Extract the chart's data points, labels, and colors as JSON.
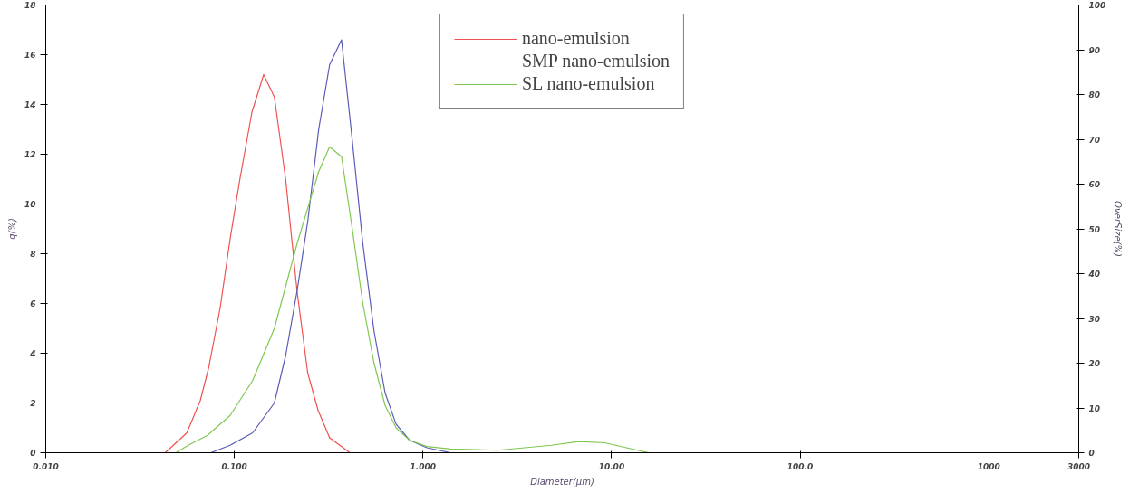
{
  "chart_data": {
    "type": "line",
    "xlabel": "Diameter(µm)",
    "ylabel": "q(%)",
    "y2label": "OverSize(%)",
    "log": "x",
    "xlim": [
      0.01,
      3000
    ],
    "xticks": [
      {
        "value": 0.01,
        "label": "0.010"
      },
      {
        "value": 0.1,
        "label": "0.100"
      },
      {
        "value": 1,
        "label": "1.000"
      },
      {
        "value": 10,
        "label": "10.00"
      },
      {
        "value": 100,
        "label": "100.0"
      },
      1000,
      3000
    ],
    "ylim": [
      0,
      18
    ],
    "yticks": [
      0,
      2,
      4,
      6,
      8,
      10,
      12,
      14,
      16,
      18
    ],
    "y2lim": [
      0,
      100
    ],
    "y2ticks": [
      0,
      10,
      20,
      30,
      40,
      50,
      60,
      70,
      80,
      90,
      100
    ],
    "grid": false,
    "legend": "top",
    "marker": "none",
    "line_style": "solid",
    "series": [
      {
        "name": "nano-emulsion",
        "color": "#f05050",
        "x": [
          0.043,
          0.056,
          0.066,
          0.073,
          0.084,
          0.095,
          0.107,
          0.124,
          0.143,
          0.163,
          0.187,
          0.215,
          0.245,
          0.278,
          0.32,
          0.41
        ],
        "values": [
          0,
          0.8,
          2.1,
          3.4,
          5.8,
          8.6,
          11,
          13.7,
          15.2,
          14.3,
          11,
          6.5,
          3.2,
          1.7,
          0.6,
          0
        ]
      },
      {
        "name": "SMP nano-emulsion",
        "color": "#5a5ab8",
        "x": [
          0.075,
          0.095,
          0.125,
          0.163,
          0.187,
          0.215,
          0.245,
          0.28,
          0.32,
          0.37,
          0.42,
          0.48,
          0.55,
          0.63,
          0.72,
          0.85,
          1.05,
          1.4
        ],
        "values": [
          0,
          0.3,
          0.8,
          2,
          3.9,
          6.5,
          9.3,
          13,
          15.6,
          16.6,
          12.7,
          8.4,
          4.9,
          2.4,
          1.15,
          0.5,
          0.2,
          0
        ]
      },
      {
        "name": "SL nano-emulsion",
        "color": "#80c850",
        "x": [
          0.049,
          0.057,
          0.072,
          0.095,
          0.125,
          0.163,
          0.215,
          0.28,
          0.32,
          0.37,
          0.42,
          0.48,
          0.55,
          0.63,
          0.72,
          0.85,
          1.05,
          1.4,
          2.5,
          4.8,
          6.7,
          9.2,
          12,
          15.8
        ],
        "values": [
          0,
          0.3,
          0.7,
          1.5,
          2.9,
          5,
          8.4,
          11.3,
          12.3,
          11.9,
          9.1,
          6,
          3.6,
          1.9,
          1,
          0.5,
          0.25,
          0.15,
          0.1,
          0.3,
          0.45,
          0.4,
          0.2,
          0
        ]
      }
    ]
  }
}
